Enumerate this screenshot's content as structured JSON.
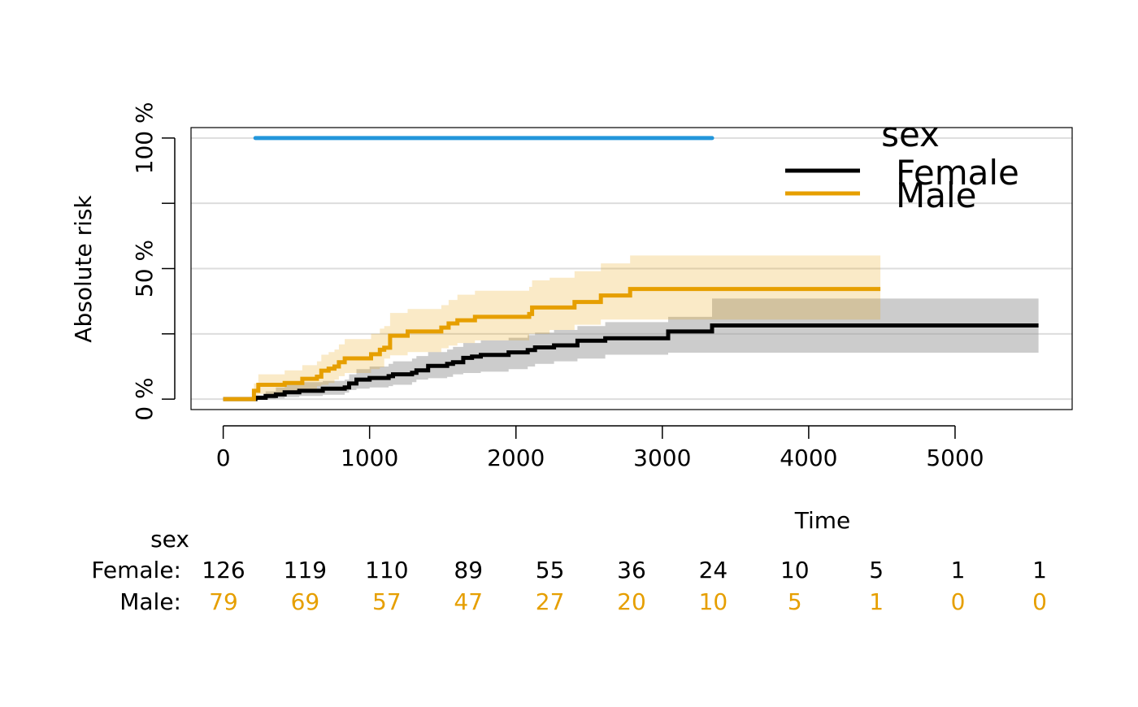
{
  "chart_data": {
    "type": "line",
    "subtype": "step",
    "title": "",
    "xlabel": "Time",
    "ylabel": "Absolute risk",
    "xlim": [
      -220,
      5800
    ],
    "ylim": [
      -4,
      104
    ],
    "x_ticks": [
      0,
      1000,
      2000,
      3000,
      4000,
      5000
    ],
    "x_tick_labels": [
      "0",
      "1000",
      "2000",
      "3000",
      "4000",
      "5000"
    ],
    "y_ticks": [
      0,
      25,
      50,
      75,
      100
    ],
    "y_tick_labels": [
      "0 %",
      "",
      "50 %",
      "",
      "100 %"
    ],
    "grid": "horizontal",
    "legend": {
      "title": "sex",
      "position": "top-right",
      "entries": [
        {
          "label": "Female",
          "color": "#000000"
        },
        {
          "label": "Male",
          "color": "#E69F00"
        }
      ]
    },
    "reference_line": {
      "y": 100,
      "x_from": 220,
      "x_to": 3340,
      "color": "#2396DB"
    },
    "series": [
      {
        "name": "Female",
        "color": "#000000",
        "band_color": "#999999",
        "points": [
          [
            0,
            0
          ],
          [
            210,
            0
          ],
          [
            220,
            0.5
          ],
          [
            290,
            1.2
          ],
          [
            360,
            1.8
          ],
          [
            420,
            2.6
          ],
          [
            520,
            3.2
          ],
          [
            680,
            4
          ],
          [
            830,
            4.5
          ],
          [
            860,
            6
          ],
          [
            910,
            7.5
          ],
          [
            1000,
            8.1
          ],
          [
            1130,
            8.8
          ],
          [
            1160,
            9.5
          ],
          [
            1290,
            10.1
          ],
          [
            1320,
            11
          ],
          [
            1400,
            12.7
          ],
          [
            1530,
            13.5
          ],
          [
            1570,
            14.1
          ],
          [
            1640,
            15.8
          ],
          [
            1700,
            16.3
          ],
          [
            1760,
            16.9
          ],
          [
            1950,
            17.9
          ],
          [
            2080,
            18.8
          ],
          [
            2130,
            19.8
          ],
          [
            2260,
            20.6
          ],
          [
            2420,
            22.4
          ],
          [
            2610,
            23.3
          ],
          [
            3040,
            25.9
          ],
          [
            3340,
            28.2
          ],
          [
            5570,
            28.2
          ]
        ],
        "upper": [
          [
            0,
            0
          ],
          [
            210,
            0
          ],
          [
            220,
            1.5
          ],
          [
            290,
            3
          ],
          [
            360,
            4.5
          ],
          [
            420,
            5.5
          ],
          [
            520,
            6.5
          ],
          [
            680,
            7
          ],
          [
            830,
            7.5
          ],
          [
            860,
            9.5
          ],
          [
            910,
            11.5
          ],
          [
            1000,
            12.5
          ],
          [
            1130,
            13.5
          ],
          [
            1160,
            14.5
          ],
          [
            1290,
            15.5
          ],
          [
            1320,
            16.5
          ],
          [
            1400,
            18
          ],
          [
            1530,
            19
          ],
          [
            1570,
            20
          ],
          [
            1640,
            21.5
          ],
          [
            1760,
            22.5
          ],
          [
            1950,
            23.5
          ],
          [
            2080,
            24.5
          ],
          [
            2130,
            25.5
          ],
          [
            2260,
            26.5
          ],
          [
            2420,
            28
          ],
          [
            2610,
            29.5
          ],
          [
            3040,
            31.5
          ],
          [
            3340,
            38.5
          ],
          [
            5570,
            38.5
          ]
        ],
        "lower": [
          [
            0,
            0
          ],
          [
            210,
            0
          ],
          [
            220,
            0
          ],
          [
            290,
            0
          ],
          [
            360,
            0
          ],
          [
            420,
            0.3
          ],
          [
            520,
            0.8
          ],
          [
            680,
            1.2
          ],
          [
            830,
            1.7
          ],
          [
            860,
            2.5
          ],
          [
            910,
            3.5
          ],
          [
            1000,
            4
          ],
          [
            1130,
            4.5
          ],
          [
            1160,
            5
          ],
          [
            1290,
            5.5
          ],
          [
            1320,
            6.5
          ],
          [
            1400,
            7.5
          ],
          [
            1530,
            8
          ],
          [
            1570,
            8.5
          ],
          [
            1640,
            9.5
          ],
          [
            1760,
            10
          ],
          [
            1950,
            10.5
          ],
          [
            2080,
            11.5
          ],
          [
            2130,
            12.5
          ],
          [
            2260,
            13.5
          ],
          [
            2420,
            14.5
          ],
          [
            2610,
            15.5
          ],
          [
            3040,
            17
          ],
          [
            3340,
            17.8
          ],
          [
            5570,
            17.8
          ]
        ]
      },
      {
        "name": "Male",
        "color": "#E69F00",
        "band_color": "#E69F00",
        "points": [
          [
            0,
            0
          ],
          [
            190,
            0
          ],
          [
            210,
            3.2
          ],
          [
            240,
            5.5
          ],
          [
            420,
            6.2
          ],
          [
            540,
            7.8
          ],
          [
            640,
            8.6
          ],
          [
            670,
            10.9
          ],
          [
            720,
            11.7
          ],
          [
            760,
            12.5
          ],
          [
            790,
            14.1
          ],
          [
            830,
            15.6
          ],
          [
            1010,
            17.2
          ],
          [
            1070,
            18.9
          ],
          [
            1100,
            19.7
          ],
          [
            1140,
            24.3
          ],
          [
            1260,
            25.9
          ],
          [
            1490,
            27.4
          ],
          [
            1540,
            29
          ],
          [
            1600,
            30.2
          ],
          [
            1720,
            31.5
          ],
          [
            2090,
            32.6
          ],
          [
            2110,
            35.1
          ],
          [
            2230,
            35.1
          ],
          [
            2400,
            37.2
          ],
          [
            2580,
            39.7
          ],
          [
            2780,
            42.2
          ],
          [
            4490,
            42.2
          ]
        ],
        "upper": [
          [
            0,
            0
          ],
          [
            190,
            0
          ],
          [
            210,
            6
          ],
          [
            240,
            9.5
          ],
          [
            420,
            11
          ],
          [
            540,
            13
          ],
          [
            640,
            14.5
          ],
          [
            670,
            17
          ],
          [
            720,
            18
          ],
          [
            760,
            19
          ],
          [
            790,
            21
          ],
          [
            830,
            23
          ],
          [
            1010,
            25
          ],
          [
            1070,
            27
          ],
          [
            1100,
            28
          ],
          [
            1140,
            33
          ],
          [
            1260,
            34.5
          ],
          [
            1490,
            36
          ],
          [
            1540,
            38
          ],
          [
            1600,
            40
          ],
          [
            1720,
            41.5
          ],
          [
            2090,
            43
          ],
          [
            2110,
            45.5
          ],
          [
            2230,
            46.5
          ],
          [
            2400,
            49
          ],
          [
            2580,
            52
          ],
          [
            2780,
            55
          ],
          [
            4490,
            55
          ]
        ],
        "lower": [
          [
            0,
            0
          ],
          [
            190,
            0
          ],
          [
            210,
            0.6
          ],
          [
            240,
            1.5
          ],
          [
            420,
            2
          ],
          [
            540,
            2.8
          ],
          [
            640,
            3.5
          ],
          [
            670,
            5
          ],
          [
            720,
            5.5
          ],
          [
            760,
            6.2
          ],
          [
            790,
            7.5
          ],
          [
            830,
            8.8
          ],
          [
            1010,
            10
          ],
          [
            1070,
            11.5
          ],
          [
            1100,
            12.2
          ],
          [
            1140,
            15.5
          ],
          [
            1260,
            16.8
          ],
          [
            1490,
            18
          ],
          [
            1540,
            19.5
          ],
          [
            1600,
            20.5
          ],
          [
            1720,
            21.5
          ],
          [
            2090,
            22.5
          ],
          [
            2110,
            25
          ],
          [
            2230,
            25
          ],
          [
            2400,
            26.5
          ],
          [
            2580,
            28.5
          ],
          [
            2780,
            30.5
          ],
          [
            4490,
            30.5
          ]
        ]
      }
    ],
    "risk_table": {
      "title": "sex",
      "times": [
        0,
        556,
        1112,
        1668,
        2224,
        2780,
        3336,
        3892,
        4448,
        5004,
        5560
      ],
      "rows": [
        {
          "label": "Female:",
          "color": "#000000",
          "values": [
            "126",
            "119",
            "110",
            "89",
            "55",
            "36",
            "24",
            "10",
            "5",
            "1",
            "1"
          ]
        },
        {
          "label": "Male:",
          "color": "#E69F00",
          "values": [
            "79",
            "69",
            "57",
            "47",
            "27",
            "20",
            "10",
            "5",
            "1",
            "0",
            "0"
          ]
        }
      ]
    }
  }
}
